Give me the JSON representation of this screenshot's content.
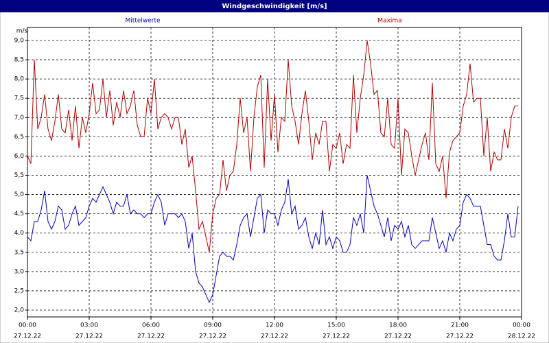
{
  "chart_data": {
    "type": "line",
    "title": "Windgeschwindigkeit [m/s]",
    "y_label": "m/s",
    "x": [
      0,
      10,
      20,
      30,
      40,
      50,
      60,
      70,
      80,
      90,
      100,
      110,
      120,
      130,
      140,
      150,
      160,
      170,
      180,
      190,
      200,
      210,
      220,
      230,
      240,
      250,
      260,
      270,
      280,
      290,
      300,
      310,
      320,
      330,
      340,
      350,
      360,
      370,
      380,
      390,
      400,
      410,
      420,
      430,
      440,
      450,
      460,
      470,
      480,
      490,
      500,
      510,
      520,
      530,
      540,
      550,
      560,
      570,
      580,
      590,
      600,
      610,
      620,
      630,
      640,
      650,
      660,
      670,
      680,
      690,
      700,
      710,
      720,
      730,
      740,
      750,
      760,
      770,
      780,
      790,
      800,
      810,
      820,
      830,
      840,
      850,
      860,
      870,
      880,
      890,
      900,
      910,
      920,
      930,
      940,
      950,
      960,
      970,
      980,
      990,
      1000,
      1010,
      1020,
      1030,
      1040,
      1050,
      1060,
      1070,
      1080,
      1090,
      1100,
      1110,
      1120,
      1130,
      1140,
      1150,
      1160,
      1170,
      1180,
      1190,
      1200,
      1210,
      1220,
      1230,
      1240,
      1250,
      1260,
      1270,
      1280,
      1290,
      1300,
      1310,
      1320,
      1330,
      1340,
      1350,
      1360,
      1370,
      1380,
      1390,
      1400,
      1410,
      1420,
      1430,
      1440
    ],
    "series": [
      {
        "name": "Mittelwerte",
        "color": "#0000c0",
        "values": [
          3.9,
          3.8,
          4.3,
          4.3,
          4.6,
          5.1,
          4.3,
          4.1,
          4.3,
          4.7,
          4.6,
          4.1,
          4.2,
          4.5,
          4.7,
          4.2,
          4.3,
          4.4,
          4.7,
          4.9,
          4.8,
          5.0,
          5.2,
          5.0,
          4.8,
          4.5,
          4.8,
          4.7,
          4.7,
          5.0,
          4.5,
          4.6,
          4.5,
          4.5,
          4.4,
          4.5,
          4.5,
          4.8,
          5.0,
          4.8,
          4.2,
          4.5,
          4.5,
          4.5,
          4.4,
          4.5,
          4.3,
          3.6,
          4.0,
          3.0,
          2.7,
          2.6,
          2.4,
          2.2,
          2.4,
          2.9,
          3.4,
          3.5,
          3.4,
          3.4,
          3.3,
          3.7,
          4.2,
          4.4,
          4.5,
          3.9,
          4.4,
          4.9,
          5.0,
          4.0,
          4.6,
          4.5,
          4.5,
          4.2,
          4.6,
          4.8,
          5.4,
          4.5,
          4.7,
          4.1,
          4.2,
          4.4,
          3.9,
          3.6,
          4.0,
          3.7,
          4.6,
          3.7,
          3.9,
          3.6,
          3.9,
          3.8,
          3.5,
          3.5,
          3.7,
          4.4,
          4.2,
          4.5,
          4.0,
          5.5,
          5.1,
          4.7,
          4.5,
          4.2,
          3.9,
          4.4,
          3.8,
          4.2,
          4.1,
          4.3,
          3.9,
          4.2,
          3.7,
          3.6,
          3.7,
          3.8,
          3.8,
          3.8,
          4.4,
          4.0,
          3.6,
          3.8,
          3.5,
          4.0,
          3.8,
          4.1,
          4.2,
          4.8,
          5.0,
          4.9,
          4.7,
          4.7,
          4.7,
          4.2,
          3.7,
          3.7,
          3.4,
          3.3,
          3.3,
          3.8,
          4.5,
          3.9,
          3.9,
          4.7,
          null
        ]
      },
      {
        "name": "Maxima",
        "color": "#b00000",
        "values": [
          6.0,
          5.8,
          8.5,
          6.7,
          7.0,
          7.6,
          6.7,
          6.4,
          6.9,
          7.6,
          6.7,
          6.6,
          7.2,
          6.4,
          7.3,
          6.2,
          7.0,
          6.6,
          7.1,
          7.9,
          7.1,
          7.2,
          8.0,
          7.0,
          7.7,
          6.8,
          7.4,
          7.0,
          7.7,
          7.1,
          7.3,
          7.7,
          6.8,
          6.5,
          6.5,
          7.5,
          7.1,
          8.0,
          6.7,
          7.0,
          7.1,
          7.0,
          6.7,
          7.0,
          7.0,
          6.3,
          6.7,
          5.7,
          6.0,
          5.1,
          4.1,
          4.3,
          3.9,
          3.5,
          4.5,
          4.9,
          5.0,
          5.9,
          5.1,
          5.5,
          5.6,
          6.3,
          7.5,
          6.6,
          7.0,
          5.6,
          7.0,
          7.8,
          8.1,
          5.7,
          8.0,
          6.4,
          7.6,
          6.1,
          7.0,
          6.9,
          8.5,
          7.3,
          6.9,
          6.3,
          7.1,
          7.7,
          6.9,
          5.9,
          6.6,
          6.3,
          6.9,
          6.9,
          5.6,
          6.3,
          6.2,
          6.6,
          5.8,
          6.3,
          6.2,
          8.1,
          6.6,
          7.5,
          8.1,
          9.0,
          8.4,
          7.6,
          7.7,
          6.6,
          6.5,
          7.5,
          6.3,
          6.2,
          7.5,
          5.5,
          6.7,
          6.6,
          6.0,
          5.5,
          5.9,
          6.3,
          6.6,
          5.9,
          7.9,
          5.8,
          5.6,
          6.0,
          4.9,
          6.1,
          6.4,
          6.5,
          6.6,
          7.3,
          7.6,
          8.4,
          7.4,
          7.5,
          7.5,
          6.0,
          7.0,
          5.6,
          6.1,
          5.9,
          5.9,
          6.7,
          6.2,
          7.0,
          7.3,
          7.3,
          null
        ]
      }
    ],
    "xlim": [
      0,
      1440
    ],
    "xticks": [
      {
        "value": 0,
        "label": "00:00",
        "date": "27.12.22"
      },
      {
        "value": 180,
        "label": "03:00",
        "date": "27.12.22"
      },
      {
        "value": 360,
        "label": "06:00",
        "date": "27.12.22"
      },
      {
        "value": 540,
        "label": "09:00",
        "date": "27.12.22"
      },
      {
        "value": 720,
        "label": "12:00",
        "date": "27.12.22"
      },
      {
        "value": 900,
        "label": "15:00",
        "date": "27.12.22"
      },
      {
        "value": 1080,
        "label": "18:00",
        "date": "27.12.22"
      },
      {
        "value": 1260,
        "label": "21:00",
        "date": "27.12.22"
      },
      {
        "value": 1440,
        "label": "00:00",
        "date": "28.12.22"
      }
    ],
    "ylim": [
      2,
      9
    ],
    "yticks": [
      {
        "value": 2,
        "label": "2,0"
      },
      {
        "value": 2.5,
        "label": "2,5"
      },
      {
        "value": 3,
        "label": "3,0"
      },
      {
        "value": 3.5,
        "label": "3,5"
      },
      {
        "value": 4,
        "label": "4,0"
      },
      {
        "value": 4.5,
        "label": "4,5"
      },
      {
        "value": 5,
        "label": "5,0"
      },
      {
        "value": 5.5,
        "label": "5,5"
      },
      {
        "value": 6,
        "label": "6,0"
      },
      {
        "value": 6.5,
        "label": "6,5"
      },
      {
        "value": 7,
        "label": "7,0"
      },
      {
        "value": 7.5,
        "label": "7,5"
      },
      {
        "value": 8,
        "label": "8,0"
      },
      {
        "value": 8.5,
        "label": "8,5"
      },
      {
        "value": 9,
        "label": "9,0"
      }
    ],
    "grid": true
  }
}
